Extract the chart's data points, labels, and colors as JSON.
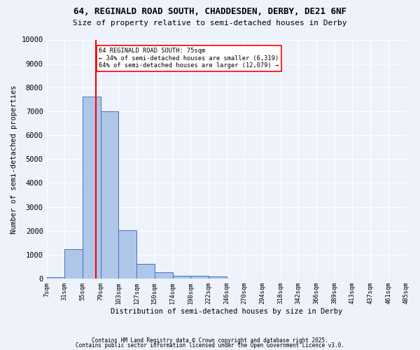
{
  "title_line1": "64, REGINALD ROAD SOUTH, CHADDESDEN, DERBY, DE21 6NF",
  "title_line2": "Size of property relative to semi-detached houses in Derby",
  "xlabel": "Distribution of semi-detached houses by size in Derby",
  "ylabel": "Number of semi-detached properties",
  "bar_values": [
    50,
    1220,
    7600,
    7000,
    2020,
    620,
    260,
    130,
    130,
    80,
    0,
    0,
    0,
    0,
    0,
    0,
    0,
    0,
    0,
    0
  ],
  "bin_labels": [
    "7sqm",
    "31sqm",
    "55sqm",
    "79sqm",
    "103sqm",
    "127sqm",
    "150sqm",
    "174sqm",
    "198sqm",
    "222sqm",
    "246sqm",
    "270sqm",
    "294sqm",
    "318sqm",
    "342sqm",
    "366sqm",
    "389sqm",
    "413sqm",
    "437sqm",
    "461sqm",
    "485sqm"
  ],
  "bar_color": "#aec6e8",
  "bar_edge_color": "#4472c4",
  "vline_x": 2.75,
  "vline_color": "#ff0000",
  "annotation_text": "64 REGINALD ROAD SOUTH: 75sqm\n← 34% of semi-detached houses are smaller (6,319)\n64% of semi-detached houses are larger (12,079) →",
  "annotation_box_color": "#ffffff",
  "annotation_box_edge": "#ff0000",
  "ylim": [
    0,
    10000
  ],
  "yticks": [
    0,
    1000,
    2000,
    3000,
    4000,
    5000,
    6000,
    7000,
    8000,
    9000,
    10000
  ],
  "footer_line1": "Contains HM Land Registry data © Crown copyright and database right 2025.",
  "footer_line2": "Contains public sector information licensed under the Open Government Licence v3.0.",
  "bg_color": "#eef2fb",
  "grid_color": "#ffffff"
}
